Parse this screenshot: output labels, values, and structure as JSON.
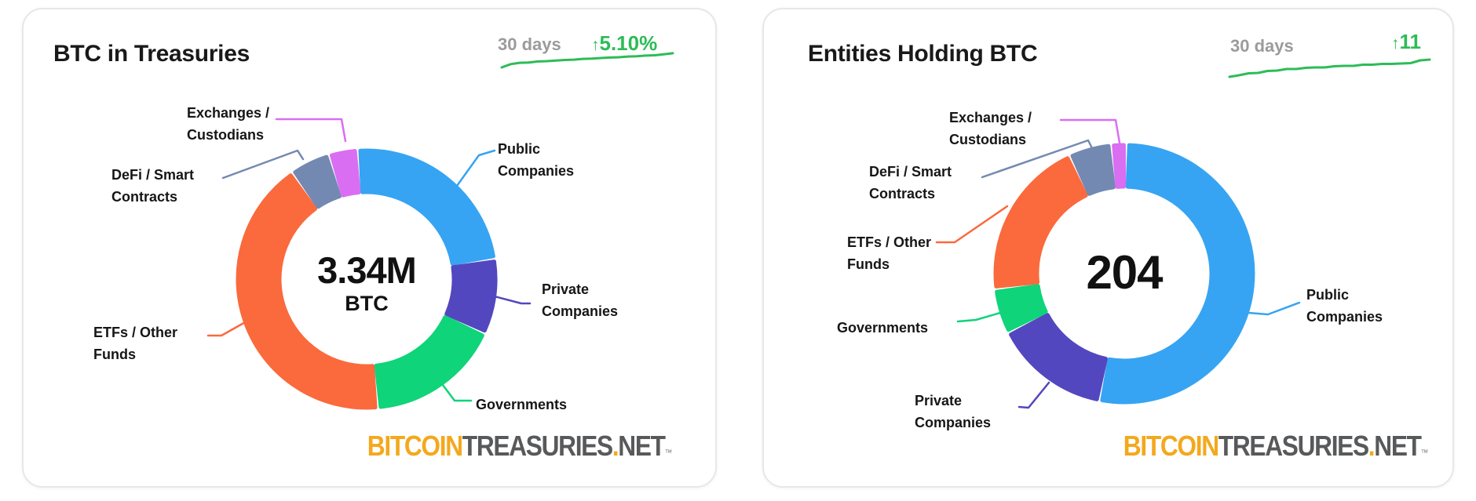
{
  "colors": {
    "positive_green": "#2cbc57",
    "period_gray": "#9b9b9b",
    "title_black": "#191919",
    "logo_orange": "#f4a81d",
    "logo_gray": "#58595b",
    "card_border": "#e7e7e7"
  },
  "logo": {
    "part1": "BITCOIN",
    "part2": "TREASURIES",
    "dot": ".",
    "part3": "NET",
    "tm": "™"
  },
  "chart_data": [
    {
      "type": "donut",
      "title": "BTC in Treasuries",
      "period": "30 days",
      "change_arrow": "↑",
      "change_value": "5.10%",
      "center": {
        "value": "3.34M",
        "unit": "BTC"
      },
      "total": "3.34M BTC",
      "legend_position": "around-donut-with-leader-lines",
      "start_angle_deg": -4,
      "segments": [
        {
          "id": "public-companies",
          "label": "Public\nCompanies",
          "color": "#36a4f2",
          "percent": 23.6,
          "approx_value": "0.79M BTC"
        },
        {
          "id": "private-companies",
          "label": "Private\nCompanies",
          "color": "#5347bf",
          "percent": 9.4,
          "approx_value": "0.31M BTC"
        },
        {
          "id": "governments",
          "label": "Governments",
          "color": "#0fd47a",
          "percent": 16.7,
          "approx_value": "0.56M BTC"
        },
        {
          "id": "etfs-other-funds",
          "label": "ETFs / Other\nFunds",
          "color": "#fa6a3d",
          "percent": 41.7,
          "approx_value": "1.39M BTC"
        },
        {
          "id": "defi-smart-contracts",
          "label": "DeFi / Smart\nContracts",
          "color": "#7489b2",
          "percent": 5.0,
          "approx_value": "0.17M BTC"
        },
        {
          "id": "exchanges-custodians",
          "label": "Exchanges /\nCustodians",
          "color": "#d96ef2",
          "percent": 3.6,
          "approx_value": "0.12M BTC"
        }
      ],
      "sparkline": [
        0.0,
        0.2,
        0.28,
        0.3,
        0.36,
        0.38,
        0.42,
        0.45,
        0.47,
        0.52,
        0.54,
        0.57,
        0.6,
        0.62,
        0.66,
        0.68,
        0.72,
        0.74,
        0.8,
        0.86
      ]
    },
    {
      "type": "donut",
      "title": "Entities Holding BTC",
      "period": "30 days",
      "change_arrow": "↑",
      "change_value": "11",
      "center": {
        "value": "204",
        "unit": ""
      },
      "total": "204 entities",
      "legend_position": "around-donut-with-leader-lines",
      "start_angle_deg": 1,
      "segments": [
        {
          "id": "public-companies",
          "label": "Public\nCompanies",
          "color": "#36a4f2",
          "percent": 52.8,
          "approx_value": "108"
        },
        {
          "id": "private-companies",
          "label": "Private\nCompanies",
          "color": "#5347bf",
          "percent": 14.4,
          "approx_value": "29"
        },
        {
          "id": "governments",
          "label": "Governments",
          "color": "#0fd47a",
          "percent": 5.6,
          "approx_value": "11"
        },
        {
          "id": "etfs-other-funds",
          "label": "ETFs / Other\nFunds",
          "color": "#fa6a3d",
          "percent": 20.0,
          "approx_value": "41"
        },
        {
          "id": "defi-smart-contracts",
          "label": "DeFi / Smart\nContracts",
          "color": "#7489b2",
          "percent": 5.3,
          "approx_value": "11"
        },
        {
          "id": "exchanges-custodians",
          "label": "Exchanges /\nCustodians",
          "color": "#d96ef2",
          "percent": 1.9,
          "approx_value": "4"
        }
      ],
      "sparkline": [
        0.0,
        0.08,
        0.18,
        0.2,
        0.3,
        0.32,
        0.4,
        0.4,
        0.46,
        0.48,
        0.48,
        0.54,
        0.56,
        0.56,
        0.62,
        0.62,
        0.66,
        0.66,
        0.68,
        0.7,
        0.84,
        0.88
      ]
    }
  ]
}
